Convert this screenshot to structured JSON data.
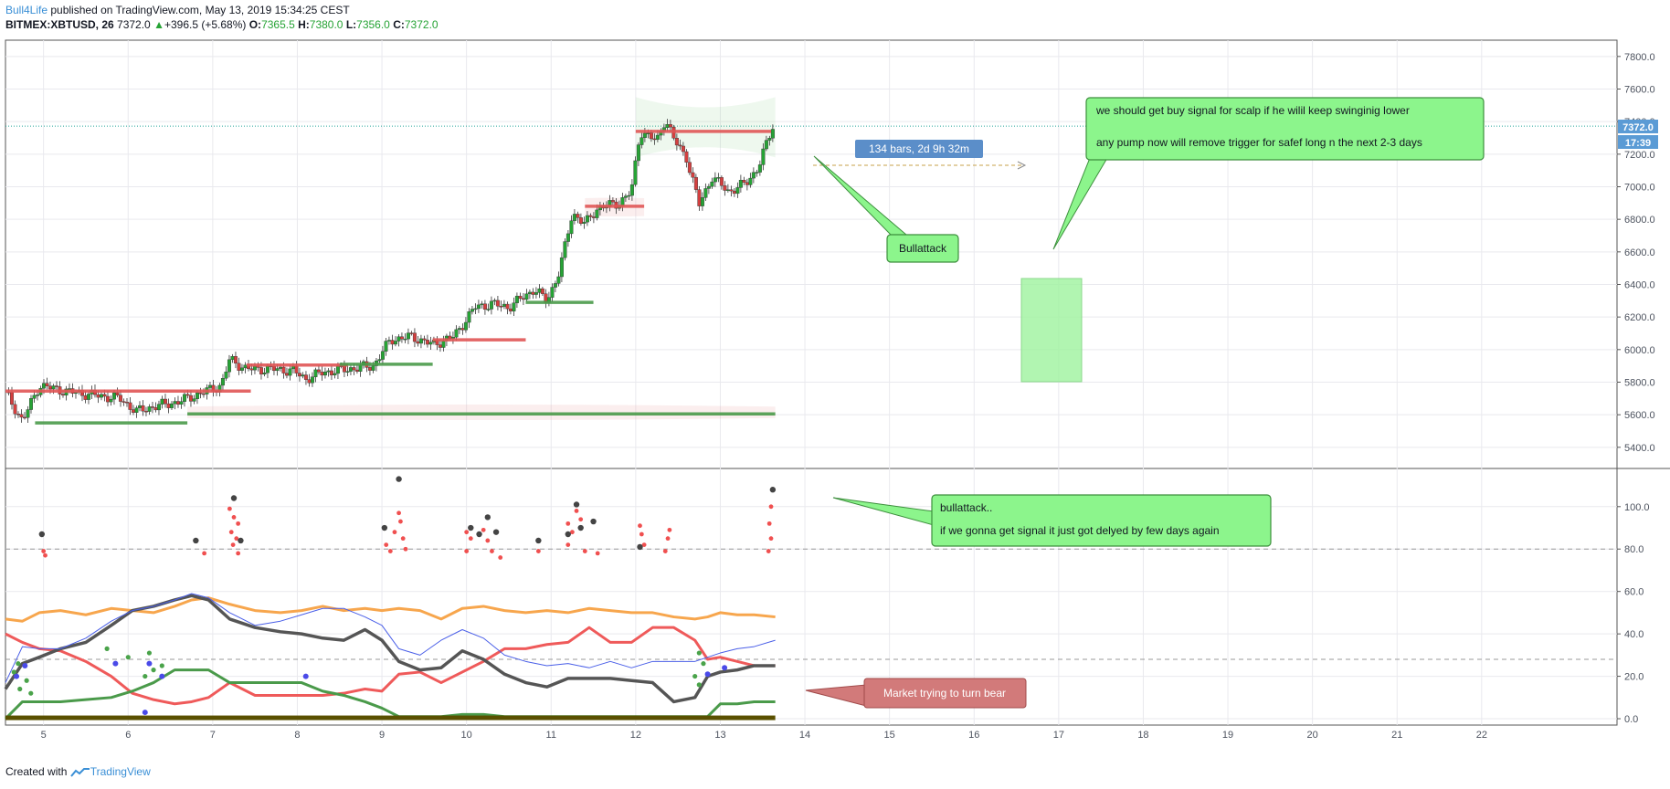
{
  "header": {
    "author": "Bull4Life",
    "published_text": " published on TradingView.com, May 13, 2019 15:34:25 CEST",
    "symbol": "BITMEX:XBTUSD, 26",
    "last": "7372.0",
    "change_arrow": "▲",
    "change": "+396.5 (+5.68%)",
    "o_label": "O:",
    "o_value": "7365.5",
    "h_label": "H:",
    "h_value": "7380.0",
    "l_label": "L:",
    "l_value": "7356.0",
    "c_label": "C:",
    "c_value": "7372.0"
  },
  "footer": {
    "created_with": "Created with",
    "brand": "TradingView"
  },
  "colors": {
    "up": "#26a335",
    "down": "#d43f3f",
    "note_bg": "#8cf58c",
    "note_border": "#3d8f3d",
    "bear_bg": "#d27a7a",
    "grid": "#e9e9ee",
    "price_badge": "#5b9bd5"
  },
  "annotations": {
    "bars_label": "134 bars, 2d 9h 32m",
    "bullattack_top": "Bullattack",
    "note_main_line1": "we should get buy signal for scalp if he wilil keep swinginig lower",
    "note_main_line2": "any pump now will remove trigger for safef long n the next 2-3 days",
    "note_lower_line1": "bullattack..",
    "note_lower_line2": "if we gonna get signal it just got delyed by few days again",
    "bear_label": "Market trying to turn bear",
    "price_tag": "7372.0",
    "time_tag": "17:39"
  },
  "chart_data": [
    {
      "type": "candlestick",
      "symbol": "BITMEX:XBTUSD",
      "x_ticks": [
        "5",
        "6",
        "7",
        "8",
        "9",
        "10",
        "11",
        "12",
        "13",
        "14",
        "15",
        "16",
        "17",
        "18",
        "19",
        "20",
        "21",
        "22"
      ],
      "y_ticks": [
        "5400.0",
        "5600.0",
        "5800.0",
        "6000.0",
        "6200.0",
        "6400.0",
        "6600.0",
        "6800.0",
        "7000.0",
        "7200.0",
        "7400.0",
        "7600.0",
        "7800.0"
      ],
      "ylim": [
        5270,
        7900
      ],
      "xlim": [
        4.55,
        23.6
      ],
      "last_price": 7372.0,
      "close_path": {
        "x": [
          4.55,
          4.75,
          4.95,
          5.3,
          5.6,
          5.9,
          6.1,
          6.3,
          6.6,
          6.85,
          7.1,
          7.2,
          7.4,
          7.7,
          7.95,
          8.1,
          8.3,
          8.6,
          8.9,
          9.1,
          9.35,
          9.6,
          9.85,
          10.1,
          10.3,
          10.5,
          10.8,
          10.95,
          11.1,
          11.25,
          11.4,
          11.55,
          11.8,
          11.95,
          12.05,
          12.25,
          12.35,
          12.45,
          12.6,
          12.75,
          12.9,
          13.1,
          13.3,
          13.45,
          13.62
        ],
        "y": [
          5740,
          5560,
          5780,
          5740,
          5720,
          5700,
          5620,
          5650,
          5680,
          5730,
          5780,
          5940,
          5880,
          5880,
          5870,
          5820,
          5860,
          5880,
          5900,
          6060,
          6080,
          6030,
          6080,
          6260,
          6280,
          6260,
          6370,
          6300,
          6480,
          6840,
          6770,
          6870,
          6900,
          6970,
          7340,
          7280,
          7420,
          7290,
          7180,
          6890,
          7060,
          6970,
          7020,
          7120,
          7372
        ]
      },
      "support_resistance_lines": [
        {
          "x": [
            4.55,
            7.45
          ],
          "y": 5745,
          "color": "red"
        },
        {
          "x": [
            4.9,
            6.7
          ],
          "y": 5550,
          "color": "green"
        },
        {
          "x": [
            6.7,
            13.65
          ],
          "y": 5605,
          "color": "green"
        },
        {
          "x": [
            7.4,
            8.6
          ],
          "y": 5905,
          "color": "red"
        },
        {
          "x": [
            8.5,
            9.6
          ],
          "y": 5910,
          "color": "green"
        },
        {
          "x": [
            9.6,
            10.7
          ],
          "y": 6060,
          "color": "red"
        },
        {
          "x": [
            10.7,
            11.5
          ],
          "y": 6290,
          "color": "green"
        },
        {
          "x": [
            11.4,
            12.1
          ],
          "y": 6880,
          "color": "red"
        },
        {
          "x": [
            12.0,
            13.6
          ],
          "y": 7340,
          "color": "red"
        }
      ]
    },
    {
      "type": "line",
      "y_ticks": [
        "0.0",
        "20.0",
        "40.0",
        "60.0",
        "80.0",
        "100.0"
      ],
      "ylim": [
        -3,
        118
      ],
      "hlines": [
        80,
        28
      ],
      "x": [
        4.55,
        4.75,
        4.95,
        5.2,
        5.5,
        5.8,
        6.05,
        6.3,
        6.55,
        6.75,
        6.95,
        7.2,
        7.5,
        7.8,
        8.05,
        8.3,
        8.55,
        8.8,
        9.0,
        9.2,
        9.45,
        9.7,
        9.95,
        10.2,
        10.45,
        10.7,
        10.95,
        11.2,
        11.45,
        11.7,
        11.95,
        12.2,
        12.45,
        12.7,
        12.85,
        13.0,
        13.2,
        13.4,
        13.65
      ],
      "series": [
        {
          "color": "orange",
          "values": [
            47,
            46,
            50,
            51,
            49,
            52,
            51,
            50,
            53,
            56,
            57,
            54,
            51,
            50,
            51,
            53,
            51,
            52,
            51,
            52,
            51,
            47,
            52,
            53,
            51,
            50,
            51,
            50,
            52,
            51,
            50,
            50,
            48,
            47,
            48,
            50,
            49,
            49,
            48
          ]
        },
        {
          "color": "red",
          "values": [
            40,
            36,
            33,
            32,
            27,
            20,
            12,
            9,
            7,
            8,
            10,
            17,
            11,
            11,
            11,
            11,
            12,
            14,
            13,
            21,
            22,
            17,
            22,
            27,
            33,
            33,
            35,
            36,
            43,
            36,
            36,
            43,
            43,
            37,
            28,
            29,
            27,
            25,
            25
          ]
        },
        {
          "color": "dark-gray",
          "values": [
            14,
            26,
            29,
            33,
            36,
            44,
            51,
            53,
            56,
            58,
            56,
            47,
            43,
            41,
            40,
            38,
            37,
            42,
            37,
            27,
            23,
            24,
            32,
            28,
            21,
            17,
            15,
            19,
            19,
            19,
            18,
            17,
            8,
            10,
            20,
            22,
            23,
            25,
            25
          ]
        },
        {
          "color": "green",
          "values": [
            0,
            8,
            8,
            8,
            9,
            10,
            13,
            17,
            23,
            23,
            23,
            17,
            17,
            17,
            17,
            13,
            11,
            8,
            5,
            1,
            1,
            1,
            2,
            2,
            1,
            1,
            1,
            1,
            1,
            1,
            1,
            1,
            1,
            1,
            1,
            7,
            7,
            8,
            8
          ]
        },
        {
          "color": "blue",
          "values": [
            17,
            34,
            33,
            33,
            38,
            46,
            51,
            53,
            56,
            59,
            57,
            50,
            44,
            46,
            49,
            52,
            52,
            48,
            44,
            33,
            30,
            37,
            42,
            38,
            30,
            27,
            25,
            26,
            24,
            27,
            24,
            27,
            27,
            27,
            29,
            31,
            33,
            34,
            37
          ]
        }
      ]
    }
  ]
}
